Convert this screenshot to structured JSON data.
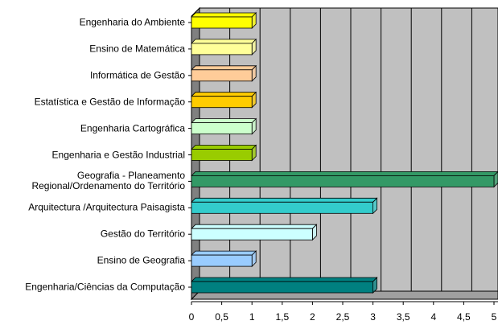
{
  "chart_data": {
    "type": "barh",
    "categories": [
      "Engenharia do Ambiente",
      "Ensino de Matemática",
      "Informática de Gestão",
      "Estatística e Gestão de Informação",
      "Engenharia Cartográfica",
      "Engenharia e Gestão Industrial",
      "Geografia - Planeamento\nRegional/Ordenamento do Território",
      "Arquitectura /Arquitectura Paisagista",
      "Gestão do Território",
      "Ensino de Geografia",
      "Engenharia/Ciências da Computação"
    ],
    "values": [
      1,
      1,
      1,
      1,
      1,
      1,
      5,
      3,
      2,
      1,
      3
    ],
    "colors": [
      "#ffff00",
      "#ffff99",
      "#ffcc99",
      "#ffcc00",
      "#ccffcc",
      "#99cc00",
      "#339966",
      "#33cccc",
      "#ccffff",
      "#99ccff",
      "#008080"
    ],
    "xlim": [
      0,
      5
    ],
    "xticks": [
      0,
      {
        "value": 0.5,
        "label": "0,5"
      },
      1,
      {
        "value": 1.5,
        "label": "1,5"
      },
      2,
      {
        "value": 2.5,
        "label": "2,5"
      },
      3,
      {
        "value": 3.5,
        "label": "3,5"
      },
      4,
      {
        "value": 4.5,
        "label": "4,5"
      },
      5
    ],
    "grid": true
  }
}
